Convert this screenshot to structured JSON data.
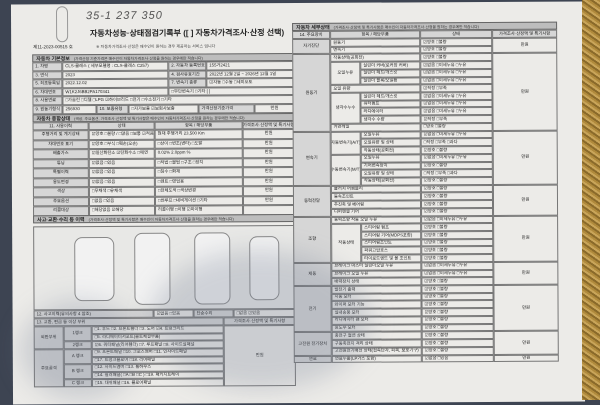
{
  "handwriting": "35-1 237 350",
  "title": "자동차성능·상태점검기록부 ([ ] 자동차가격조사·산정 선택)",
  "doc_no": "제11-2023-00515 호",
  "doc_note": "※ 자동차가격조사·산정은 매수인이 원하는 경우 제공하는 서비스 입니다",
  "basic": {
    "header": "자동차 기본정보",
    "header_note": "(가격산정 기준가격은 매수인이 자동차가격조사·산정을 원하는 경우에만 적습니다)",
    "model_label": "1. 차명",
    "model": "CLS-클래스 ( 세부모델명 : CLS-클래스 C257)",
    "reg_label": "2. 자동차 등록번호",
    "reg": "155거2421",
    "year_label": "3. 연식",
    "year": "2023",
    "valid_label": "4. 검사유효기간",
    "valid": "2022년 12월 2일 ~ 2026년 12월 1일",
    "first_reg_label": "5. 최초등록일",
    "first_reg": "2022.12.02",
    "trans_label": "7. 변속기 종류",
    "trans": "☑자동 □수동 □세미오토",
    "vin_label": "6. 차대번호",
    "vin": "W1K2J6BB2PA170341",
    "trans2": "□무단변속기 □기타 [ ]",
    "fuel_label": "8. 사용연료",
    "fuel": "□가솔린 □디젤 □LPG ☑하이브리드 □전기 □수소전기 □기타",
    "engine_label": "9. 원동기형식",
    "engine": "256930",
    "warranty_label": "10. 보증유형",
    "warranty": "□자가보증 ☑보험사보증",
    "price_base_label": "가격산정기준가격",
    "price_unit": "만원"
  },
  "general": {
    "header": "자동차 종합상태",
    "header_note": "(색상, 주요옵션, 가격조사·산정액 및 특기사항은 매수인이 자동차가격조사·산정을 원하는 경우에만 적습니다)",
    "cols": [
      "11. 사용이력",
      "상태",
      "항목 / 해당부품",
      "가격조사·산정액 및 특기사항"
    ],
    "rows": [
      {
        "label": "주행거리 및 계기상태",
        "state": "☑양호 □불량 / □많음 □보통 ☑적음",
        "item": "현재 주행거리      23,500 Km",
        "price": "만원"
      },
      {
        "label": "차대번호 표기",
        "state": "☑양호 □부식 □훼손(오손)",
        "item": "□상이 □변조(변타) □도말",
        "price": "만원"
      },
      {
        "label": "배출가스",
        "state": "☑일산화탄소 ☑탄화수소 □매연",
        "item": "0.02%   2.0ppm   %",
        "price": "만원"
      },
      {
        "label": "튜닝",
        "state": "☑없음 □있음",
        "item": "□적법 □불법 □구조 □장치",
        "price": "만원"
      },
      {
        "label": "특별이력",
        "state": "☑없음 □있음",
        "item": "□침수 □화재",
        "price": "만원"
      },
      {
        "label": "용도변경",
        "state": "☑없음 □있음",
        "item": "□렌트 □영업용",
        "price": "만원"
      },
      {
        "label": "색상",
        "state": "□무채색 □유채색",
        "item": "□전체도색 □색상변경",
        "price": "만원"
      },
      {
        "label": "주요옵션",
        "state": "□없음 □있음",
        "item": "□썬루프 □네비게이션 □기타",
        "price": "만원"
      },
      {
        "label": "리콜대상",
        "state": "□해당없음 ☑해당",
        "item": "리콜이행 □이행 ☑미이행",
        "price": ""
      }
    ]
  },
  "accident": {
    "header": "사고·교환·수리 등 이력",
    "header_note": "(가격조사·산정액 및 특기사항은 매수인이 자동차가격조사·산정을 원하는 경우에만 적습니다)",
    "history_label": "12. 사고이력(유의사항 4 참조)",
    "history": "☑없음 □있음",
    "simple_label": "단순수리",
    "simple": "□없음 ☑있음",
    "parts_label": "13. 교환, 판금 등 이상 부위",
    "parts_price_label": "가격조사·산정액 및 특기사항",
    "outer_label": "외판부위",
    "rank1": "1랭크",
    "rank1_a": "□1. 후드 □2. 프론트휀더 □3. 도어 ☑4. 트렁크리드",
    "rank1_b": "□5. 라디에이터서포트(볼트체결부품)",
    "rank2": "2랭크",
    "rank2_a": "☑6. 쿼터패널(리어휀더) □7. 루프패널 □8. 사이드실패널",
    "frame_label": "주요골격",
    "rankA": "A 랭크",
    "rankA_a": "□9. 프론트패널 □10. 크로스멤버 □11. 인사이드패널",
    "rankA_b": "□17. 트렁크플로어 □18. 리어패널",
    "rankB": "B 랭크",
    "rankB_a": "□12. 사이드멤버 □13. 휠하우스",
    "rankB_b": "□14. 필러패널( □A □B □C ) □19. 패키지트레이",
    "rankC": "C 랭크",
    "rankC_a": "□15. 대쉬패널 □16. 플로어패널",
    "price": "만원"
  },
  "detail": {
    "header": "자동차 세부상태",
    "header_note": "(가격조사·산정액 및 특기사항은 매수인이 자동차가격조사·산정을 원하는 경우에만 적습니다)",
    "cols": [
      "14. 주요장치",
      "항목 / 해당부품",
      "상태",
      "가격조사·산정액 및 특기사항"
    ],
    "groups": [
      {
        "name": "자기진단",
        "price": "만원",
        "subs": [
          {
            "name": "",
            "items": [
              {
                "item": "원동기",
                "state": "☑양호 □불량"
              },
              {
                "item": "변속기",
                "state": "☑양호 □불량"
              }
            ]
          }
        ]
      },
      {
        "name": "원동기",
        "price": "만원",
        "subs": [
          {
            "name": "",
            "items": [
              {
                "item": "작동상태(공회전)",
                "state": "☑양호 □불량"
              }
            ]
          },
          {
            "name": "오일누유",
            "items": [
              {
                "item": "실린더 커버(로커암 커버)",
                "state": "☑없음 □미세누유 □누유"
              },
              {
                "item": "실린더 헤드/개스킷",
                "state": "☑없음 □미세누유 □누유"
              },
              {
                "item": "실린더 블록/오일팬",
                "state": "☑없음 □미세누유 □누유"
              }
            ]
          },
          {
            "name": "",
            "items": [
              {
                "item": "오일 유량",
                "state": "☑적정 □부족"
              }
            ]
          },
          {
            "name": "냉각수누수",
            "items": [
              {
                "item": "실린더 헤드/개스킷",
                "state": "☑없음 □미세누유 □누유"
              },
              {
                "item": "워터펌프",
                "state": "☑없음 □미세누유 □누유"
              },
              {
                "item": "라디에이터",
                "state": "☑없음 □미세누유 □누유"
              },
              {
                "item": "냉각수 수량",
                "state": "☑적정 □부족"
              }
            ]
          },
          {
            "name": "",
            "items": [
              {
                "item": "커먼레일",
                "state": "□양호 □불량"
              }
            ]
          }
        ]
      },
      {
        "name": "변속기",
        "price": "만원",
        "subs": [
          {
            "name": "자동변속기(A/T)",
            "items": [
              {
                "item": "오일누유",
                "state": "☑없음 □미세누유 □누유"
              },
              {
                "item": "오일유량 및 상태",
                "state": "□적정 □부족 □과다"
              },
              {
                "item": "작동상태(공회전)",
                "state": "☑양호 □불량"
              }
            ]
          },
          {
            "name": "수동변속기(M/T)",
            "items": [
              {
                "item": "오일누유",
                "state": "☑없음 □미세누유 □누유"
              },
              {
                "item": "기어변속장치",
                "state": "☑양호 □불량"
              },
              {
                "item": "오일유량 및 상태",
                "state": "□적정 □부족 □과다"
              },
              {
                "item": "작동상태(공회전)",
                "state": "☑양호 □불량"
              }
            ]
          }
        ]
      },
      {
        "name": "동력전달",
        "price": "만원",
        "subs": [
          {
            "name": "",
            "items": [
              {
                "item": "클러치 어셈블리",
                "state": "☑양호 □불량"
              },
              {
                "item": "등속조인트",
                "state": "☑양호 □불량"
              },
              {
                "item": "추진축 및 베어링",
                "state": "☑양호 □불량"
              },
              {
                "item": "디퍼렌셜 기어",
                "state": "☑양호 □불량"
              }
            ]
          }
        ]
      },
      {
        "name": "조향",
        "price": "만원",
        "subs": [
          {
            "name": "",
            "items": [
              {
                "item": "동력조향 작동 오일 누유",
                "state": "☑없음 □미세누유 □누유"
              }
            ]
          },
          {
            "name": "작동상태",
            "items": [
              {
                "item": "스티어링 펌프",
                "state": "☑양호 □불량"
              },
              {
                "item": "스티어링 기어(MDPS포함)",
                "state": "☑양호 □불량"
              },
              {
                "item": "스티어링조인트",
                "state": "☑양호 □불량"
              },
              {
                "item": "파워고압호스",
                "state": "☑양호 □불량"
              },
              {
                "item": "타이로드엔드 및 볼 조인트",
                "state": "☑양호 □불량"
              }
            ]
          }
        ]
      },
      {
        "name": "제동",
        "price": "만원",
        "subs": [
          {
            "name": "",
            "items": [
              {
                "item": "브레이크 마스터 실린더오일 누유",
                "state": "☑없음 □미세누유 □누유"
              },
              {
                "item": "브레이크 오일 누유",
                "state": "☑없음 □미세누유 □누유"
              },
              {
                "item": "배력장치 상태",
                "state": "☑양호 □불량"
              }
            ]
          }
        ]
      },
      {
        "name": "전기",
        "price": "만원",
        "subs": [
          {
            "name": "",
            "items": [
              {
                "item": "발전기 출력",
                "state": "☑양호 □불량"
              },
              {
                "item": "시동 모터",
                "state": "☑양호 □불량"
              },
              {
                "item": "와이퍼 모터 기능",
                "state": "☑양호 □불량"
              },
              {
                "item": "실내송풍 모터",
                "state": "☑양호 □불량"
              },
              {
                "item": "라디에이터 팬 모터",
                "state": "☑양호 □불량"
              },
              {
                "item": "윈도우 모터",
                "state": "☑양호 □불량"
              }
            ]
          }
        ]
      },
      {
        "name": "고전원 전기장치",
        "price": "만원",
        "subs": [
          {
            "name": "",
            "items": [
              {
                "item": "충전구 절연 상태",
                "state": "☑양호 □불량"
              },
              {
                "item": "구동축전지 격리 상태",
                "state": "☑양호 □불량"
              },
              {
                "item": "고전원전기배선 상태(접속단자, 피복, 보호기구)",
                "state": "☑양호 □불량"
              }
            ]
          }
        ]
      },
      {
        "name": "연료",
        "price": "만원",
        "subs": [
          {
            "name": "",
            "items": [
              {
                "item": "연료누출(LP가스 포함)",
                "state": "☑없음 □있음"
              }
            ]
          }
        ]
      }
    ]
  }
}
